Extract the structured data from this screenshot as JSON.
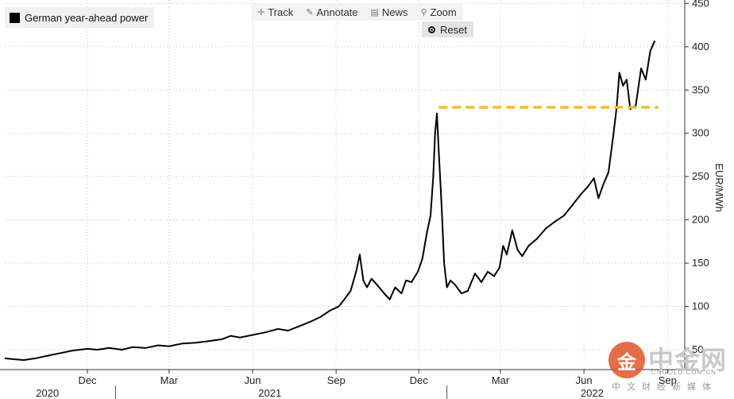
{
  "legend": {
    "label": "German year-ahead power"
  },
  "toolbar": {
    "track": "Track",
    "annotate": "Annotate",
    "news": "News",
    "zoom": "Zoom",
    "reset": "Reset",
    "track_icon": "crosshair-icon",
    "annotate_icon": "pencil-icon",
    "news_icon": "newspaper-icon",
    "zoom_icon": "magnifier-icon"
  },
  "watermark": {
    "logo_glyph": "金",
    "name": "中金网",
    "domain": "CNGOLD.COM.CN",
    "subtitle": "中文财经新媒体"
  },
  "chart_data": {
    "type": "line",
    "ylabel": "EUR/MWh",
    "ylim": [
      50,
      450
    ],
    "ylim_bottom": 27,
    "y_ticks": [
      50,
      100,
      150,
      200,
      250,
      300,
      350,
      400,
      450
    ],
    "xlim": [
      "2020-09-01",
      "2022-09-20"
    ],
    "month_ticks": [
      {
        "label": "Dec",
        "date": "2020-12-01"
      },
      {
        "label": "Mar",
        "date": "2021-03-01"
      },
      {
        "label": "Jun",
        "date": "2021-06-01"
      },
      {
        "label": "Sep",
        "date": "2021-09-01"
      },
      {
        "label": "Dec",
        "date": "2021-12-01"
      },
      {
        "label": "Mar",
        "date": "2022-03-01"
      },
      {
        "label": "Jun",
        "date": "2022-06-01"
      },
      {
        "label": "Sep",
        "date": "2022-09-01"
      }
    ],
    "year_labels": [
      {
        "label": "2020",
        "date": "2020-10-18"
      },
      {
        "label": "2021",
        "date": "2021-06-20"
      },
      {
        "label": "2022",
        "date": "2022-06-10"
      }
    ],
    "year_dividers": [
      "2021-01-01",
      "2022-01-01"
    ],
    "grid": true,
    "legend_position": "top-left",
    "series": [
      {
        "name": "German year-ahead power",
        "color": "#000000",
        "points": [
          [
            "2020-09-01",
            40
          ],
          [
            "2020-09-10",
            39
          ],
          [
            "2020-09-22",
            38
          ],
          [
            "2020-10-05",
            40
          ],
          [
            "2020-10-18",
            43
          ],
          [
            "2020-11-01",
            46
          ],
          [
            "2020-11-15",
            49
          ],
          [
            "2020-12-01",
            51
          ],
          [
            "2020-12-12",
            50
          ],
          [
            "2020-12-25",
            52
          ],
          [
            "2021-01-08",
            50
          ],
          [
            "2021-01-20",
            53
          ],
          [
            "2021-02-03",
            52
          ],
          [
            "2021-02-17",
            55
          ],
          [
            "2021-03-01",
            54
          ],
          [
            "2021-03-15",
            57
          ],
          [
            "2021-03-30",
            58
          ],
          [
            "2021-04-14",
            60
          ],
          [
            "2021-04-28",
            62
          ],
          [
            "2021-05-08",
            66
          ],
          [
            "2021-05-18",
            64
          ],
          [
            "2021-06-01",
            67
          ],
          [
            "2021-06-15",
            70
          ],
          [
            "2021-06-29",
            74
          ],
          [
            "2021-07-10",
            72
          ],
          [
            "2021-07-22",
            77
          ],
          [
            "2021-08-03",
            82
          ],
          [
            "2021-08-15",
            88
          ],
          [
            "2021-08-25",
            95
          ],
          [
            "2021-09-04",
            100
          ],
          [
            "2021-09-10",
            108
          ],
          [
            "2021-09-17",
            118
          ],
          [
            "2021-09-23",
            140
          ],
          [
            "2021-09-27",
            160
          ],
          [
            "2021-10-01",
            130
          ],
          [
            "2021-10-05",
            122
          ],
          [
            "2021-10-10",
            132
          ],
          [
            "2021-10-16",
            125
          ],
          [
            "2021-10-24",
            115
          ],
          [
            "2021-10-30",
            108
          ],
          [
            "2021-11-05",
            122
          ],
          [
            "2021-11-12",
            115
          ],
          [
            "2021-11-17",
            130
          ],
          [
            "2021-11-23",
            128
          ],
          [
            "2021-11-30",
            140
          ],
          [
            "2021-12-05",
            155
          ],
          [
            "2021-12-10",
            185
          ],
          [
            "2021-12-14",
            205
          ],
          [
            "2021-12-17",
            250
          ],
          [
            "2021-12-19",
            300
          ],
          [
            "2021-12-21",
            323
          ],
          [
            "2021-12-23",
            280
          ],
          [
            "2021-12-26",
            220
          ],
          [
            "2021-12-29",
            150
          ],
          [
            "2022-01-01",
            122
          ],
          [
            "2022-01-05",
            130
          ],
          [
            "2022-01-10",
            125
          ],
          [
            "2022-01-17",
            115
          ],
          [
            "2022-01-24",
            118
          ],
          [
            "2022-02-01",
            138
          ],
          [
            "2022-02-08",
            128
          ],
          [
            "2022-02-15",
            140
          ],
          [
            "2022-02-22",
            135
          ],
          [
            "2022-02-28",
            145
          ],
          [
            "2022-03-04",
            170
          ],
          [
            "2022-03-08",
            160
          ],
          [
            "2022-03-14",
            188
          ],
          [
            "2022-03-20",
            165
          ],
          [
            "2022-03-25",
            158
          ],
          [
            "2022-04-01",
            170
          ],
          [
            "2022-04-10",
            178
          ],
          [
            "2022-04-20",
            190
          ],
          [
            "2022-04-30",
            198
          ],
          [
            "2022-05-10",
            205
          ],
          [
            "2022-05-20",
            218
          ],
          [
            "2022-05-29",
            230
          ],
          [
            "2022-06-05",
            238
          ],
          [
            "2022-06-12",
            248
          ],
          [
            "2022-06-17",
            225
          ],
          [
            "2022-06-22",
            240
          ],
          [
            "2022-06-28",
            255
          ],
          [
            "2022-07-03",
            295
          ],
          [
            "2022-07-07",
            330
          ],
          [
            "2022-07-10",
            370
          ],
          [
            "2022-07-14",
            355
          ],
          [
            "2022-07-18",
            362
          ],
          [
            "2022-07-22",
            328
          ],
          [
            "2022-07-28",
            332
          ],
          [
            "2022-08-03",
            375
          ],
          [
            "2022-08-08",
            362
          ],
          [
            "2022-08-13",
            395
          ],
          [
            "2022-08-18",
            407
          ]
        ]
      }
    ],
    "reference_line": {
      "y": 330,
      "x_start": "2021-12-23",
      "x_end": "2022-08-22",
      "color": "#f0c020",
      "style": "dashed"
    }
  }
}
